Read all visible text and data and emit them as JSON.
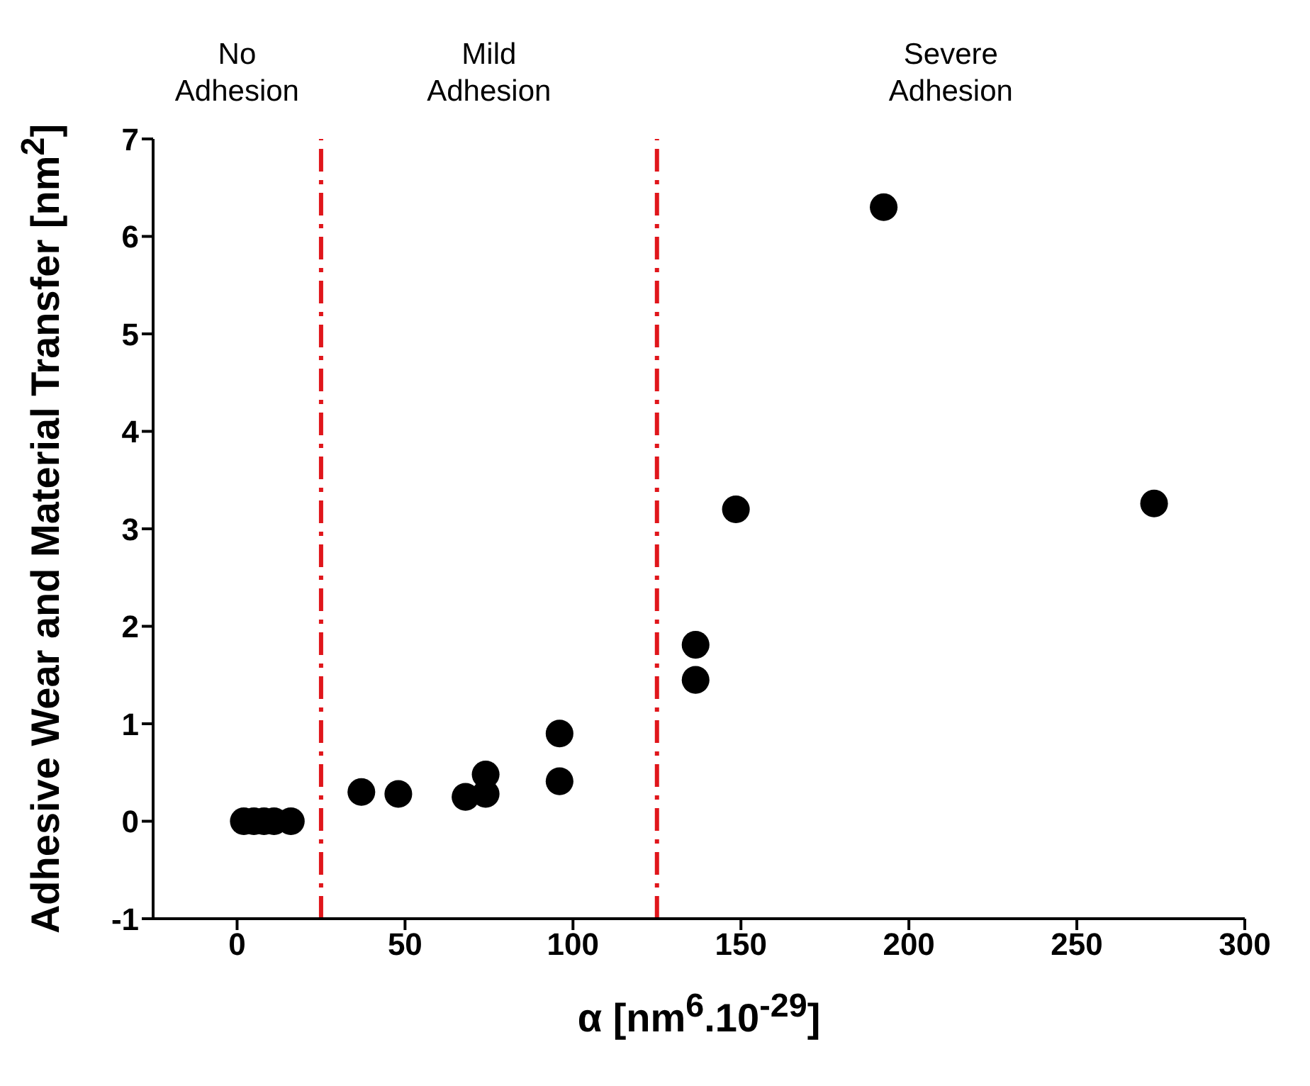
{
  "chart_data": {
    "type": "scatter",
    "xlabel": "α [nm$^{6}$.10$^{-29}$]",
    "ylabel": "Adhesive Wear and Material Transfer [nm$^{2}$]",
    "x": [
      2,
      5,
      8,
      11,
      16,
      37,
      48,
      68,
      74,
      74,
      96,
      96,
      136.5,
      136.5,
      148.5,
      192.5,
      273
    ],
    "series": [
      {
        "color": "#000000",
        "values": [
          0,
          0,
          0,
          0,
          0,
          0.3,
          0.28,
          0.25,
          0.48,
          0.28,
          0.9,
          0.41,
          1.81,
          1.45,
          3.2,
          6.3,
          3.26
        ]
      }
    ],
    "xlim": [
      -25,
      300
    ],
    "xticks": [
      0,
      50,
      100,
      150,
      200,
      250,
      300
    ],
    "ylim": [
      -1,
      7
    ],
    "yticks": [
      -1,
      0,
      1,
      2,
      3,
      4,
      5,
      6,
      7
    ],
    "ref_lines": [
      {
        "axis": "x",
        "value": 25,
        "color": "#e0161b",
        "line_style": "dashed"
      },
      {
        "axis": "x",
        "value": 125,
        "color": "#e0161b",
        "line_style": "dashed"
      }
    ],
    "annotations": [
      "No\nAdhesion",
      "Mild\nAdhesion",
      "Severe\nAdhesion"
    ],
    "marker": "circle",
    "grid": false,
    "legend": false
  }
}
